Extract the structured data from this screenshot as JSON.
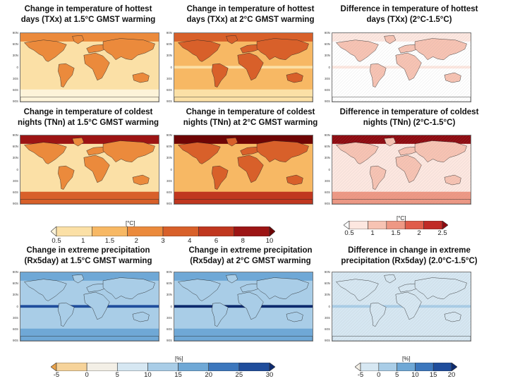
{
  "colors": {
    "warm": [
      "#fdf3d9",
      "#fbe0a6",
      "#f7b864",
      "#eb8a3c",
      "#d8602a",
      "#c0371f",
      "#9c1414",
      "#6e0505"
    ],
    "diff": [
      "#ffffff",
      "#fde7e0",
      "#f7c3b3",
      "#ee9884",
      "#e05c4a",
      "#c02a26",
      "#8e0a10"
    ],
    "precip": [
      "#e9a24a",
      "#f6d39a",
      "#f3efe6",
      "#d6e7f2",
      "#a9cde7",
      "#6fa8d6",
      "#3c77bd",
      "#1f4d9c",
      "#0d2a6e"
    ]
  },
  "rows": [
    {
      "panels": [
        {
          "id": "txx-15",
          "title_line1": "Change in temperature of hottest",
          "title_line2": "days (TXx) at 1.5°C GMST warming",
          "palette": "warm",
          "land": 3,
          "ocean": 1,
          "south": 0,
          "north": 3,
          "tropic": 1
        },
        {
          "id": "txx-20",
          "title_line1": "Change in temperature of hottest",
          "title_line2": "days (TXx) at 2°C GMST warming",
          "palette": "warm",
          "land": 4,
          "ocean": 2,
          "south": 1,
          "north": 4,
          "tropic": 1
        },
        {
          "id": "txx-diff",
          "title_line1": "Difference in temperature of hottest",
          "title_line2": "days (TXx) (2°C-1.5°C)",
          "palette": "diff",
          "land": 2,
          "ocean": 0,
          "south": 0,
          "north": 1,
          "tropic": 1
        }
      ]
    },
    {
      "panels": [
        {
          "id": "tnn-15",
          "title_line1": "Change in temperature of coldest",
          "title_line2": "nights (TNn) at 1.5°C GMST warming",
          "palette": "warm",
          "land": 3,
          "ocean": 1,
          "south": 4,
          "north": 6,
          "tropic": 1
        },
        {
          "id": "tnn-20",
          "title_line1": "Change in temperature of coldest",
          "title_line2": "nights (TNn) at 2°C GMST warming",
          "palette": "warm",
          "land": 4,
          "ocean": 2,
          "south": 5,
          "north": 7,
          "tropic": 2
        },
        {
          "id": "tnn-diff",
          "title_line1": "Difference in temperature of coldest",
          "title_line2": "nights (TNn) (2°C-1.5°C)",
          "palette": "diff",
          "land": 2,
          "ocean": 1,
          "south": 3,
          "north": 6,
          "tropic": 1
        }
      ]
    },
    {
      "panels": [
        {
          "id": "rx5-15",
          "title_line1": "Change in extreme precipitation",
          "title_line2": "(Rx5day) at 1.5°C GMST warming",
          "palette": "precip",
          "land": 4,
          "ocean": 4,
          "south": 5,
          "north": 5,
          "tropic": 7
        },
        {
          "id": "rx5-20",
          "title_line1": "Change in extreme precipitation",
          "title_line2": "(Rx5day) at 2°C GMST warming",
          "palette": "precip",
          "land": 4,
          "ocean": 4,
          "south": 5,
          "north": 5,
          "tropic": 8
        },
        {
          "id": "rx5-diff",
          "title_line1": "Difference in change in extreme",
          "title_line2": "precipitation (Rx5day) (2.0°C-1.5°C)",
          "palette": "precip",
          "land": 3,
          "ocean": 3,
          "south": 3,
          "north": 3,
          "tropic": 4
        }
      ]
    }
  ],
  "colorbars": {
    "temp": {
      "unit": "[°C]",
      "ticks": [
        "0.5",
        "1",
        "1.5",
        "2",
        "3",
        "4",
        "6",
        "8",
        "10"
      ]
    },
    "temp_diff": {
      "unit": "[°C]",
      "ticks": [
        "0.5",
        "1",
        "1.5",
        "2",
        "2.5"
      ]
    },
    "precip": {
      "unit": "[%]",
      "ticks": [
        "-5",
        "0",
        "5",
        "10",
        "15",
        "20",
        "25",
        "30"
      ]
    },
    "precip_diff": {
      "unit": "[%]",
      "ticks": [
        "-5",
        "0",
        "5",
        "10",
        "15",
        "20"
      ]
    }
  },
  "lat_ticks": [
    "90N",
    "60N",
    "30N",
    "0",
    "30S",
    "60S",
    "90S"
  ],
  "chart_data": [
    {
      "type": "heatmap",
      "title": "Change in temperature of hottest days (TXx) at 1.5°C GMST warming",
      "unit": "°C",
      "levels": [
        0.5,
        1,
        1.5,
        2,
        3,
        4,
        6,
        8,
        10
      ]
    },
    {
      "type": "heatmap",
      "title": "Change in temperature of hottest days (TXx) at 2°C GMST warming",
      "unit": "°C",
      "levels": [
        0.5,
        1,
        1.5,
        2,
        3,
        4,
        6,
        8,
        10
      ]
    },
    {
      "type": "heatmap",
      "title": "Difference in temperature of hottest days (TXx) (2°C-1.5°C)",
      "unit": "°C",
      "levels": [
        0.5,
        1,
        1.5,
        2,
        2.5
      ]
    },
    {
      "type": "heatmap",
      "title": "Change in temperature of coldest nights (TNn) at 1.5°C GMST warming",
      "unit": "°C",
      "levels": [
        0.5,
        1,
        1.5,
        2,
        3,
        4,
        6,
        8,
        10
      ]
    },
    {
      "type": "heatmap",
      "title": "Change in temperature of coldest nights (TNn) at 2°C GMST warming",
      "unit": "°C",
      "levels": [
        0.5,
        1,
        1.5,
        2,
        3,
        4,
        6,
        8,
        10
      ]
    },
    {
      "type": "heatmap",
      "title": "Difference in temperature of coldest nights (TNn) (2°C-1.5°C)",
      "unit": "°C",
      "levels": [
        0.5,
        1,
        1.5,
        2,
        2.5
      ]
    },
    {
      "type": "heatmap",
      "title": "Change in extreme precipitation (Rx5day) at 1.5°C GMST warming",
      "unit": "%",
      "levels": [
        -5,
        0,
        5,
        10,
        15,
        20,
        25,
        30
      ]
    },
    {
      "type": "heatmap",
      "title": "Change in extreme precipitation (Rx5day) at 2°C GMST warming",
      "unit": "%",
      "levels": [
        -5,
        0,
        5,
        10,
        15,
        20,
        25,
        30
      ]
    },
    {
      "type": "heatmap",
      "title": "Difference in change in extreme precipitation (Rx5day) (2.0°C-1.5°C)",
      "unit": "%",
      "levels": [
        -5,
        0,
        5,
        10,
        15,
        20
      ]
    }
  ]
}
